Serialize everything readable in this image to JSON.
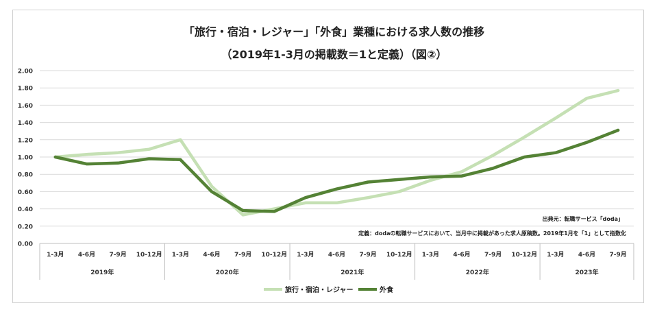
{
  "chart_data": {
    "type": "line",
    "title": "「旅行・宿泊・レジャー」「外食」業種における求人数の推移",
    "subtitle": "（2019年1-3月の掲載数＝1と定義）（図②）",
    "xlabel": "",
    "ylabel": "",
    "ylim": [
      0,
      2
    ],
    "yticks": [
      "0.00",
      "0.20",
      "0.40",
      "0.60",
      "0.80",
      "1.00",
      "1.20",
      "1.40",
      "1.60",
      "1.80",
      "2.00"
    ],
    "categories": [
      "1-3月",
      "4-6月",
      "7-9月",
      "10-12月",
      "1-3月",
      "4-6月",
      "7-9月",
      "10-12月",
      "1-3月",
      "4-6月",
      "7-9月",
      "10-12月",
      "1-3月",
      "4-6月",
      "7-9月",
      "10-12月",
      "1-3月",
      "4-6月",
      "7-9月"
    ],
    "year_groups": [
      {
        "label": "2019年",
        "count": 4
      },
      {
        "label": "2020年",
        "count": 4
      },
      {
        "label": "2021年",
        "count": 4
      },
      {
        "label": "2022年",
        "count": 4
      },
      {
        "label": "2023年",
        "count": 3
      }
    ],
    "series": [
      {
        "name": "旅行・宿泊・レジャー",
        "color": "#c5e0b4",
        "values": [
          1.0,
          1.03,
          1.05,
          1.09,
          1.2,
          0.66,
          0.33,
          0.4,
          0.47,
          0.47,
          0.53,
          0.6,
          0.73,
          0.83,
          1.02,
          1.23,
          1.45,
          1.68,
          1.77
        ]
      },
      {
        "name": "外食",
        "color": "#548235",
        "values": [
          1.0,
          0.92,
          0.93,
          0.98,
          0.97,
          0.6,
          0.38,
          0.37,
          0.53,
          0.63,
          0.71,
          0.74,
          0.77,
          0.78,
          0.87,
          1.0,
          1.05,
          1.17,
          1.31
        ]
      }
    ],
    "annotations": [
      "出典元：転職サービス「doda」",
      "定義：dodaの転職サービスにおいて、当月中に掲載があった求人原稿数。2019年1月を「1」として指数化"
    ],
    "grid": true,
    "legend": "bottom-center"
  }
}
